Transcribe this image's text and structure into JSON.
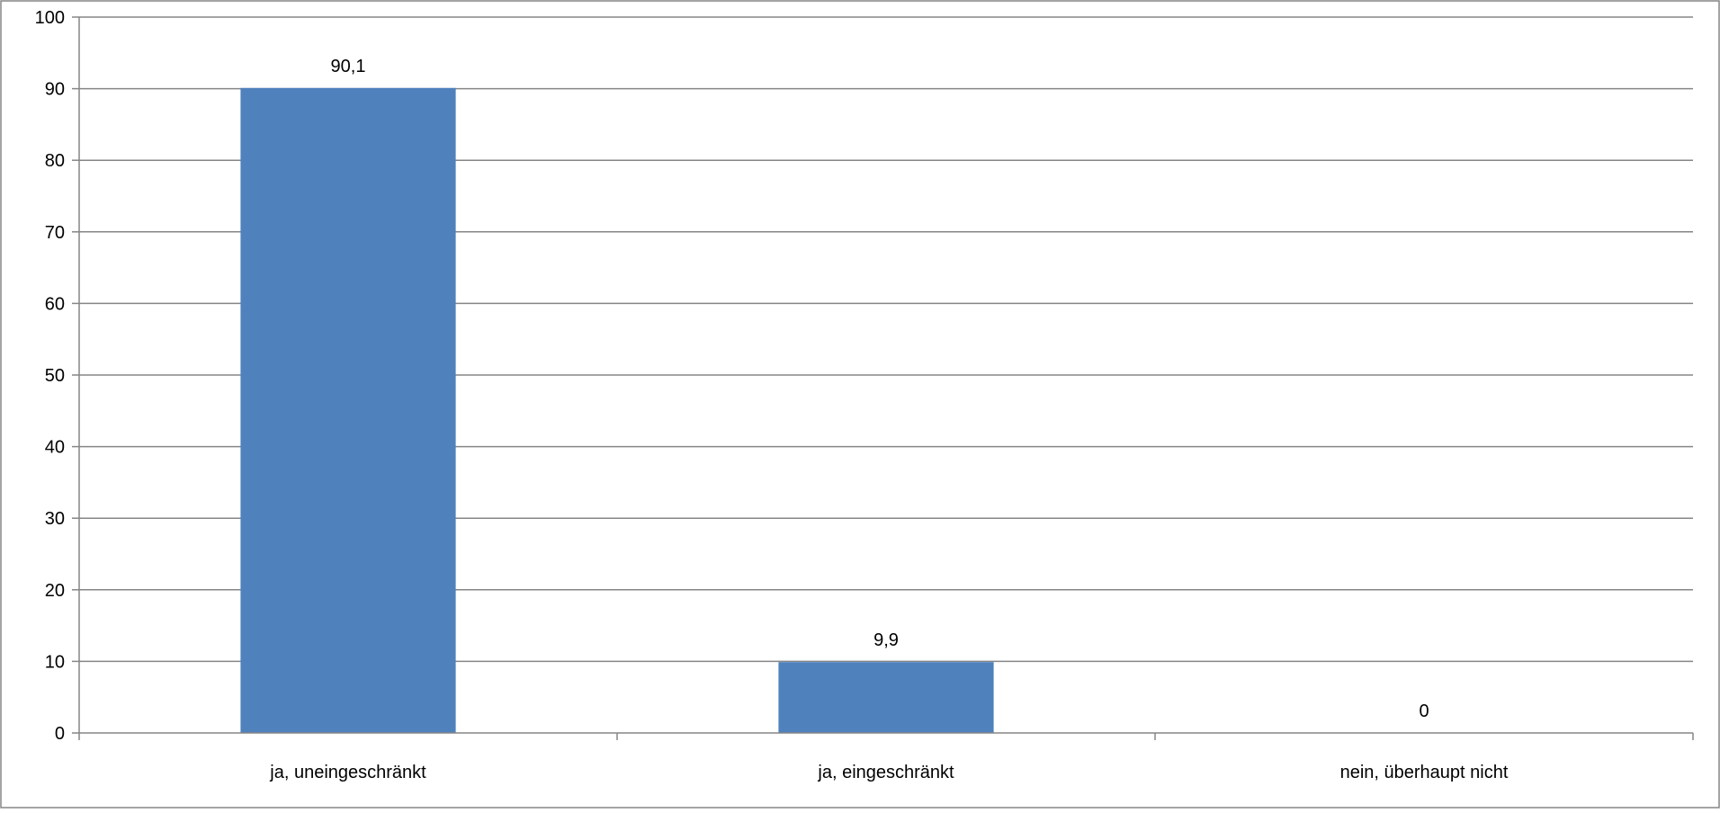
{
  "chart_data": {
    "type": "bar",
    "categories": [
      "ja, uneingeschränkt",
      "ja, eingeschränkt",
      "nein, überhaupt nicht"
    ],
    "values": [
      90.1,
      9.9,
      0
    ],
    "data_labels": [
      "90,1",
      "9,9",
      "0"
    ],
    "ylim": [
      0,
      100
    ],
    "y_ticks": [
      "0",
      "10",
      "20",
      "30",
      "40",
      "50",
      "60",
      "70",
      "80",
      "90",
      "100"
    ],
    "grid": true,
    "legend": "none",
    "bar_color": "#4F81BD"
  }
}
